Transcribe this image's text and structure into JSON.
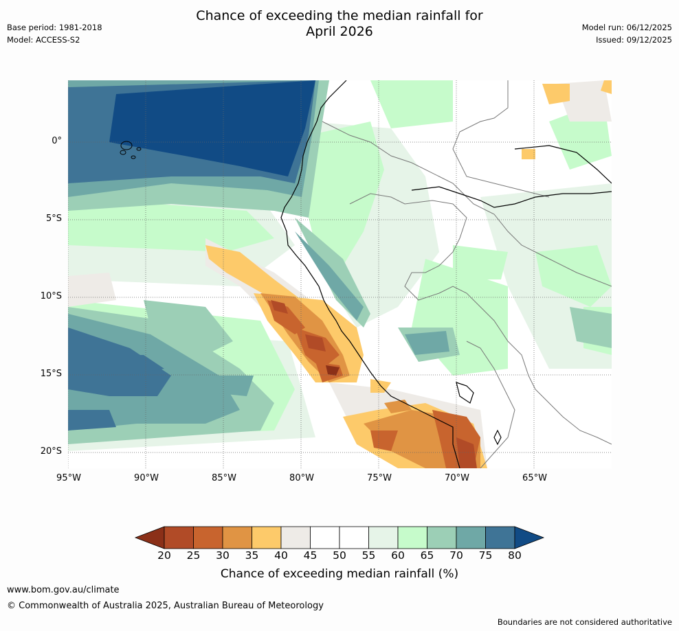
{
  "header": {
    "title_line1": "Chance of exceeding the median rainfall for",
    "title_line2": "April 2026",
    "base_period": "Base period: 1981-2018",
    "model": "Model: ACCESS-S2",
    "model_run": "Model run: 06/12/2025",
    "issued": "Issued: 09/12/2025"
  },
  "map": {
    "lat_labels": [
      "0°",
      "5°S",
      "10°S",
      "15°S",
      "20°S"
    ],
    "lon_labels": [
      "95°W",
      "90°W",
      "85°W",
      "80°W",
      "75°W",
      "70°W",
      "65°W"
    ],
    "lat_values": [
      0,
      -5,
      -10,
      -15,
      -20
    ],
    "lon_values": [
      -95,
      -90,
      -85,
      -80,
      -75,
      -70,
      -65
    ],
    "extent": {
      "west": -95,
      "east": -60,
      "north": 4,
      "south": -21
    }
  },
  "legend": {
    "title": "Chance of exceeding median rainfall (%)",
    "tick_labels": [
      "20",
      "25",
      "30",
      "35",
      "40",
      "45",
      "50",
      "55",
      "60",
      "65",
      "70",
      "75",
      "80"
    ],
    "colors": [
      "#8b3018",
      "#b14b27",
      "#c8642e",
      "#e09444",
      "#fdca6a",
      "#eeebe7",
      "#ffffff",
      "#ffffff",
      "#e6f4e8",
      "#c6fbcb",
      "#9ccfb6",
      "#6fa8a6",
      "#3f7496",
      "#114b85"
    ]
  },
  "footer": {
    "url": "www.bom.gov.au/climate",
    "copyright": "© Commonwealth of Australia 2025, Australian Bureau of Meteorology",
    "disclaimer": "Boundaries are not considered authoritative"
  }
}
